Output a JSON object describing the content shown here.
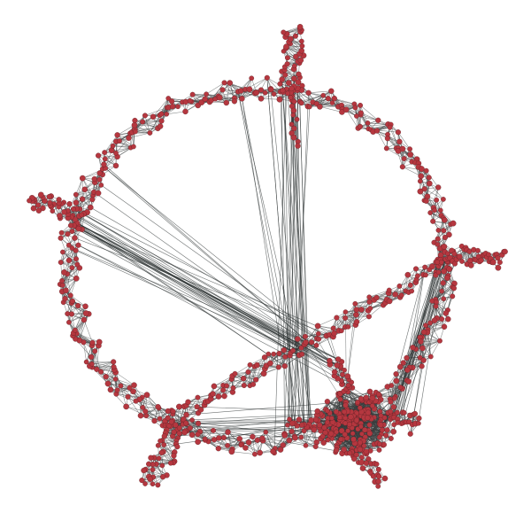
{
  "graph": {
    "kind": "network-diagram",
    "node_color": "#b5373f",
    "node_stroke": "#5a2024",
    "edge_color": "#3a3f3f",
    "background": "#ffffff",
    "structure": [
      "ring",
      "chord",
      "five-tentacles",
      "dense-cluster"
    ],
    "labels": []
  }
}
